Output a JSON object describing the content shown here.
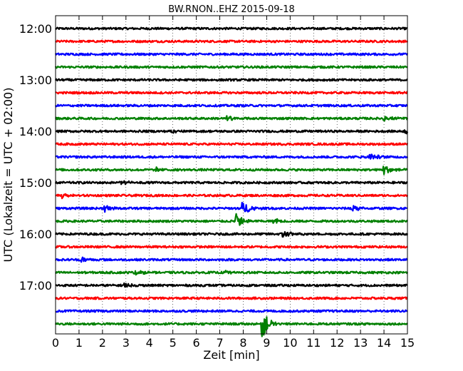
{
  "chart_data": {
    "type": "line",
    "title": "BW.RNON..EHZ 2015-09-18",
    "xlabel": "Zeit  [min]",
    "ylabel": "UTC (Lokalzeit = UTC + 02:00)",
    "xlim": [
      0,
      15
    ],
    "x_ticks": [
      0,
      1,
      2,
      3,
      4,
      5,
      6,
      7,
      8,
      9,
      10,
      11,
      12,
      13,
      14,
      15
    ],
    "x_tick_labels": [
      "0",
      "1",
      "2",
      "3",
      "4",
      "5",
      "6",
      "7",
      "8",
      "9",
      "10",
      "11",
      "12",
      "13",
      "14",
      "15"
    ],
    "y_tick_labels": [
      "12:00",
      "13:00",
      "14:00",
      "15:00",
      "16:00",
      "17:00"
    ],
    "grid": {
      "x": true,
      "y": false,
      "style": "dotted"
    },
    "trace_colors": [
      "#000000",
      "#ff0000",
      "#0000ff",
      "#008000"
    ],
    "series": [
      {
        "start": "12:00",
        "color": "#000000",
        "events": []
      },
      {
        "start": "12:15",
        "color": "#ff0000",
        "events": []
      },
      {
        "start": "12:30",
        "color": "#0000ff",
        "events": []
      },
      {
        "start": "12:45",
        "color": "#008000",
        "events": []
      },
      {
        "start": "13:00",
        "color": "#000000",
        "events": []
      },
      {
        "start": "13:15",
        "color": "#ff0000",
        "events": []
      },
      {
        "start": "13:30",
        "color": "#0000ff",
        "events": []
      },
      {
        "start": "13:45",
        "color": "#008000",
        "events": [
          {
            "t": 7.3,
            "amp": 0.3
          },
          {
            "t": 14.0,
            "amp": 0.35
          }
        ]
      },
      {
        "start": "14:00",
        "color": "#000000",
        "events": [
          {
            "t": 4.9,
            "amp": 0.25
          },
          {
            "t": 14.9,
            "amp": 0.3
          }
        ]
      },
      {
        "start": "14:15",
        "color": "#ff0000",
        "events": []
      },
      {
        "start": "14:30",
        "color": "#0000ff",
        "events": [
          {
            "t": 13.4,
            "amp": 0.4
          }
        ]
      },
      {
        "start": "14:45",
        "color": "#008000",
        "events": [
          {
            "t": 4.3,
            "amp": 0.25
          },
          {
            "t": 14.0,
            "amp": 0.6
          }
        ]
      },
      {
        "start": "15:00",
        "color": "#000000",
        "events": [
          {
            "t": 2.8,
            "amp": 0.35
          }
        ]
      },
      {
        "start": "15:15",
        "color": "#ff0000",
        "events": [
          {
            "t": 0.3,
            "amp": 0.3
          }
        ]
      },
      {
        "start": "15:30",
        "color": "#0000ff",
        "events": [
          {
            "t": 2.1,
            "amp": 0.35
          },
          {
            "t": 8.0,
            "amp": 0.8
          },
          {
            "t": 12.6,
            "amp": 0.5
          }
        ]
      },
      {
        "start": "15:45",
        "color": "#008000",
        "events": [
          {
            "t": 7.7,
            "amp": 0.9
          },
          {
            "t": 9.3,
            "amp": 0.4
          }
        ]
      },
      {
        "start": "16:00",
        "color": "#000000",
        "events": [
          {
            "t": 9.7,
            "amp": 0.45
          }
        ]
      },
      {
        "start": "16:15",
        "color": "#ff0000",
        "events": []
      },
      {
        "start": "16:30",
        "color": "#0000ff",
        "events": [
          {
            "t": 1.1,
            "amp": 0.35
          }
        ]
      },
      {
        "start": "16:45",
        "color": "#008000",
        "events": [
          {
            "t": 3.4,
            "amp": 0.3
          },
          {
            "t": 7.3,
            "amp": 0.3
          }
        ]
      },
      {
        "start": "17:00",
        "color": "#000000",
        "events": [
          {
            "t": 2.9,
            "amp": 0.25
          }
        ]
      },
      {
        "start": "17:15",
        "color": "#ff0000",
        "events": []
      },
      {
        "start": "17:30",
        "color": "#0000ff",
        "events": []
      },
      {
        "start": "17:45",
        "color": "#008000",
        "events": [
          {
            "t": 8.8,
            "amp": 1.6
          }
        ]
      }
    ]
  }
}
